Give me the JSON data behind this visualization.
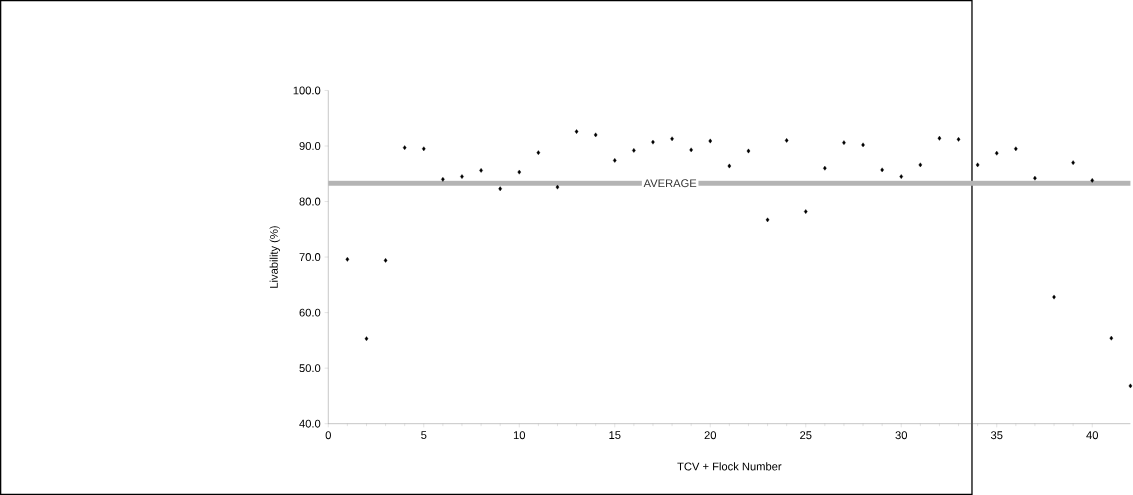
{
  "chart_data": {
    "type": "scatter",
    "xlabel": "TCV + Flock Number",
    "ylabel": "Livability (%)",
    "x": [
      1,
      2,
      3,
      4,
      5,
      6,
      7,
      8,
      9,
      10,
      11,
      12,
      13,
      14,
      15,
      16,
      17,
      18,
      19,
      20,
      21,
      22,
      23,
      24,
      25,
      26,
      27,
      28,
      29,
      30,
      31,
      32,
      33,
      34,
      35,
      36,
      37,
      38,
      39,
      40,
      41,
      42
    ],
    "values": [
      69.6,
      55.3,
      69.4,
      89.7,
      89.5,
      84.0,
      84.5,
      85.6,
      82.3,
      85.3,
      88.8,
      82.6,
      92.6,
      92.0,
      87.4,
      89.2,
      90.7,
      91.3,
      89.3,
      90.9,
      86.4,
      89.1,
      76.7,
      91.0,
      78.2,
      86.0,
      90.6,
      90.2,
      85.7,
      84.5,
      86.6,
      91.4,
      91.2,
      86.6,
      88.7,
      89.5,
      84.2,
      62.8,
      87.0,
      83.8,
      55.4,
      46.8
    ],
    "color": "#000000",
    "marker": "diamond",
    "xlim": [
      0,
      42
    ],
    "ylim": [
      40,
      100
    ],
    "xticks": [
      0,
      5,
      10,
      15,
      20,
      25,
      30,
      35,
      40
    ],
    "yticks": [
      {
        "value": 40,
        "label": "40.0"
      },
      {
        "value": 50,
        "label": "50.0"
      },
      {
        "value": 60,
        "label": "60.0"
      },
      {
        "value": 70,
        "label": "70.0"
      },
      {
        "value": 80,
        "label": "80.0"
      },
      {
        "value": 90,
        "label": "90.0"
      },
      {
        "value": 100,
        "label": "100.0"
      }
    ],
    "ref_lines": [
      {
        "axis": "y",
        "value": 83.3,
        "label": "AVERAGE",
        "color": "#b4b4b4"
      }
    ],
    "grid": false
  }
}
